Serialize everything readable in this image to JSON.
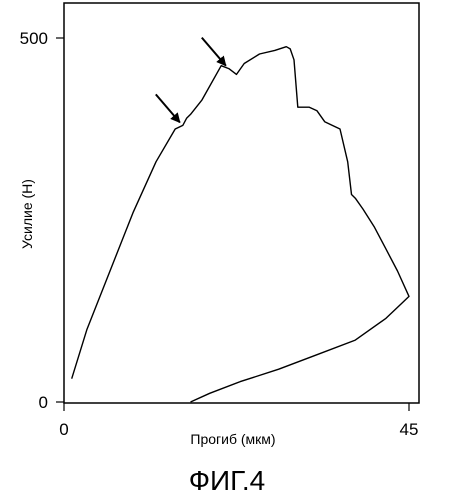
{
  "chart_data": {
    "type": "line",
    "xlabel": "Прогиб (мкм)",
    "ylabel": "Усилие (Н)",
    "xlim": [
      0,
      45
    ],
    "ylim": [
      0,
      500
    ],
    "x_ticks": [
      "0",
      "45"
    ],
    "y_ticks": [
      "0",
      "500"
    ],
    "grid": false,
    "caption": "ФИГ.4",
    "series": [
      {
        "x": [
          1,
          3,
          6,
          9,
          12,
          14.5,
          15.5,
          16,
          16.5,
          18,
          20.5,
          21.5,
          22.5,
          23.5,
          25.5,
          27.5,
          29,
          29.5,
          30,
          30.5,
          32,
          33,
          34,
          35,
          36,
          37,
          37.5,
          38,
          39,
          40.5,
          42,
          43.5,
          45,
          44,
          42,
          38,
          33,
          28,
          23,
          19,
          16.5
        ],
        "y": [
          32,
          100,
          180,
          260,
          330,
          375,
          380,
          390,
          395,
          415,
          462,
          458,
          450,
          465,
          478,
          483,
          488,
          485,
          470,
          405,
          405,
          400,
          385,
          380,
          375,
          330,
          285,
          280,
          265,
          240,
          210,
          180,
          145,
          135,
          115,
          85,
          65,
          45,
          28,
          12,
          0
        ]
      }
    ],
    "annotations": [
      {
        "type": "arrow",
        "x": 15.5,
        "y": 380
      },
      {
        "type": "arrow",
        "x": 21.5,
        "y": 458
      }
    ]
  }
}
